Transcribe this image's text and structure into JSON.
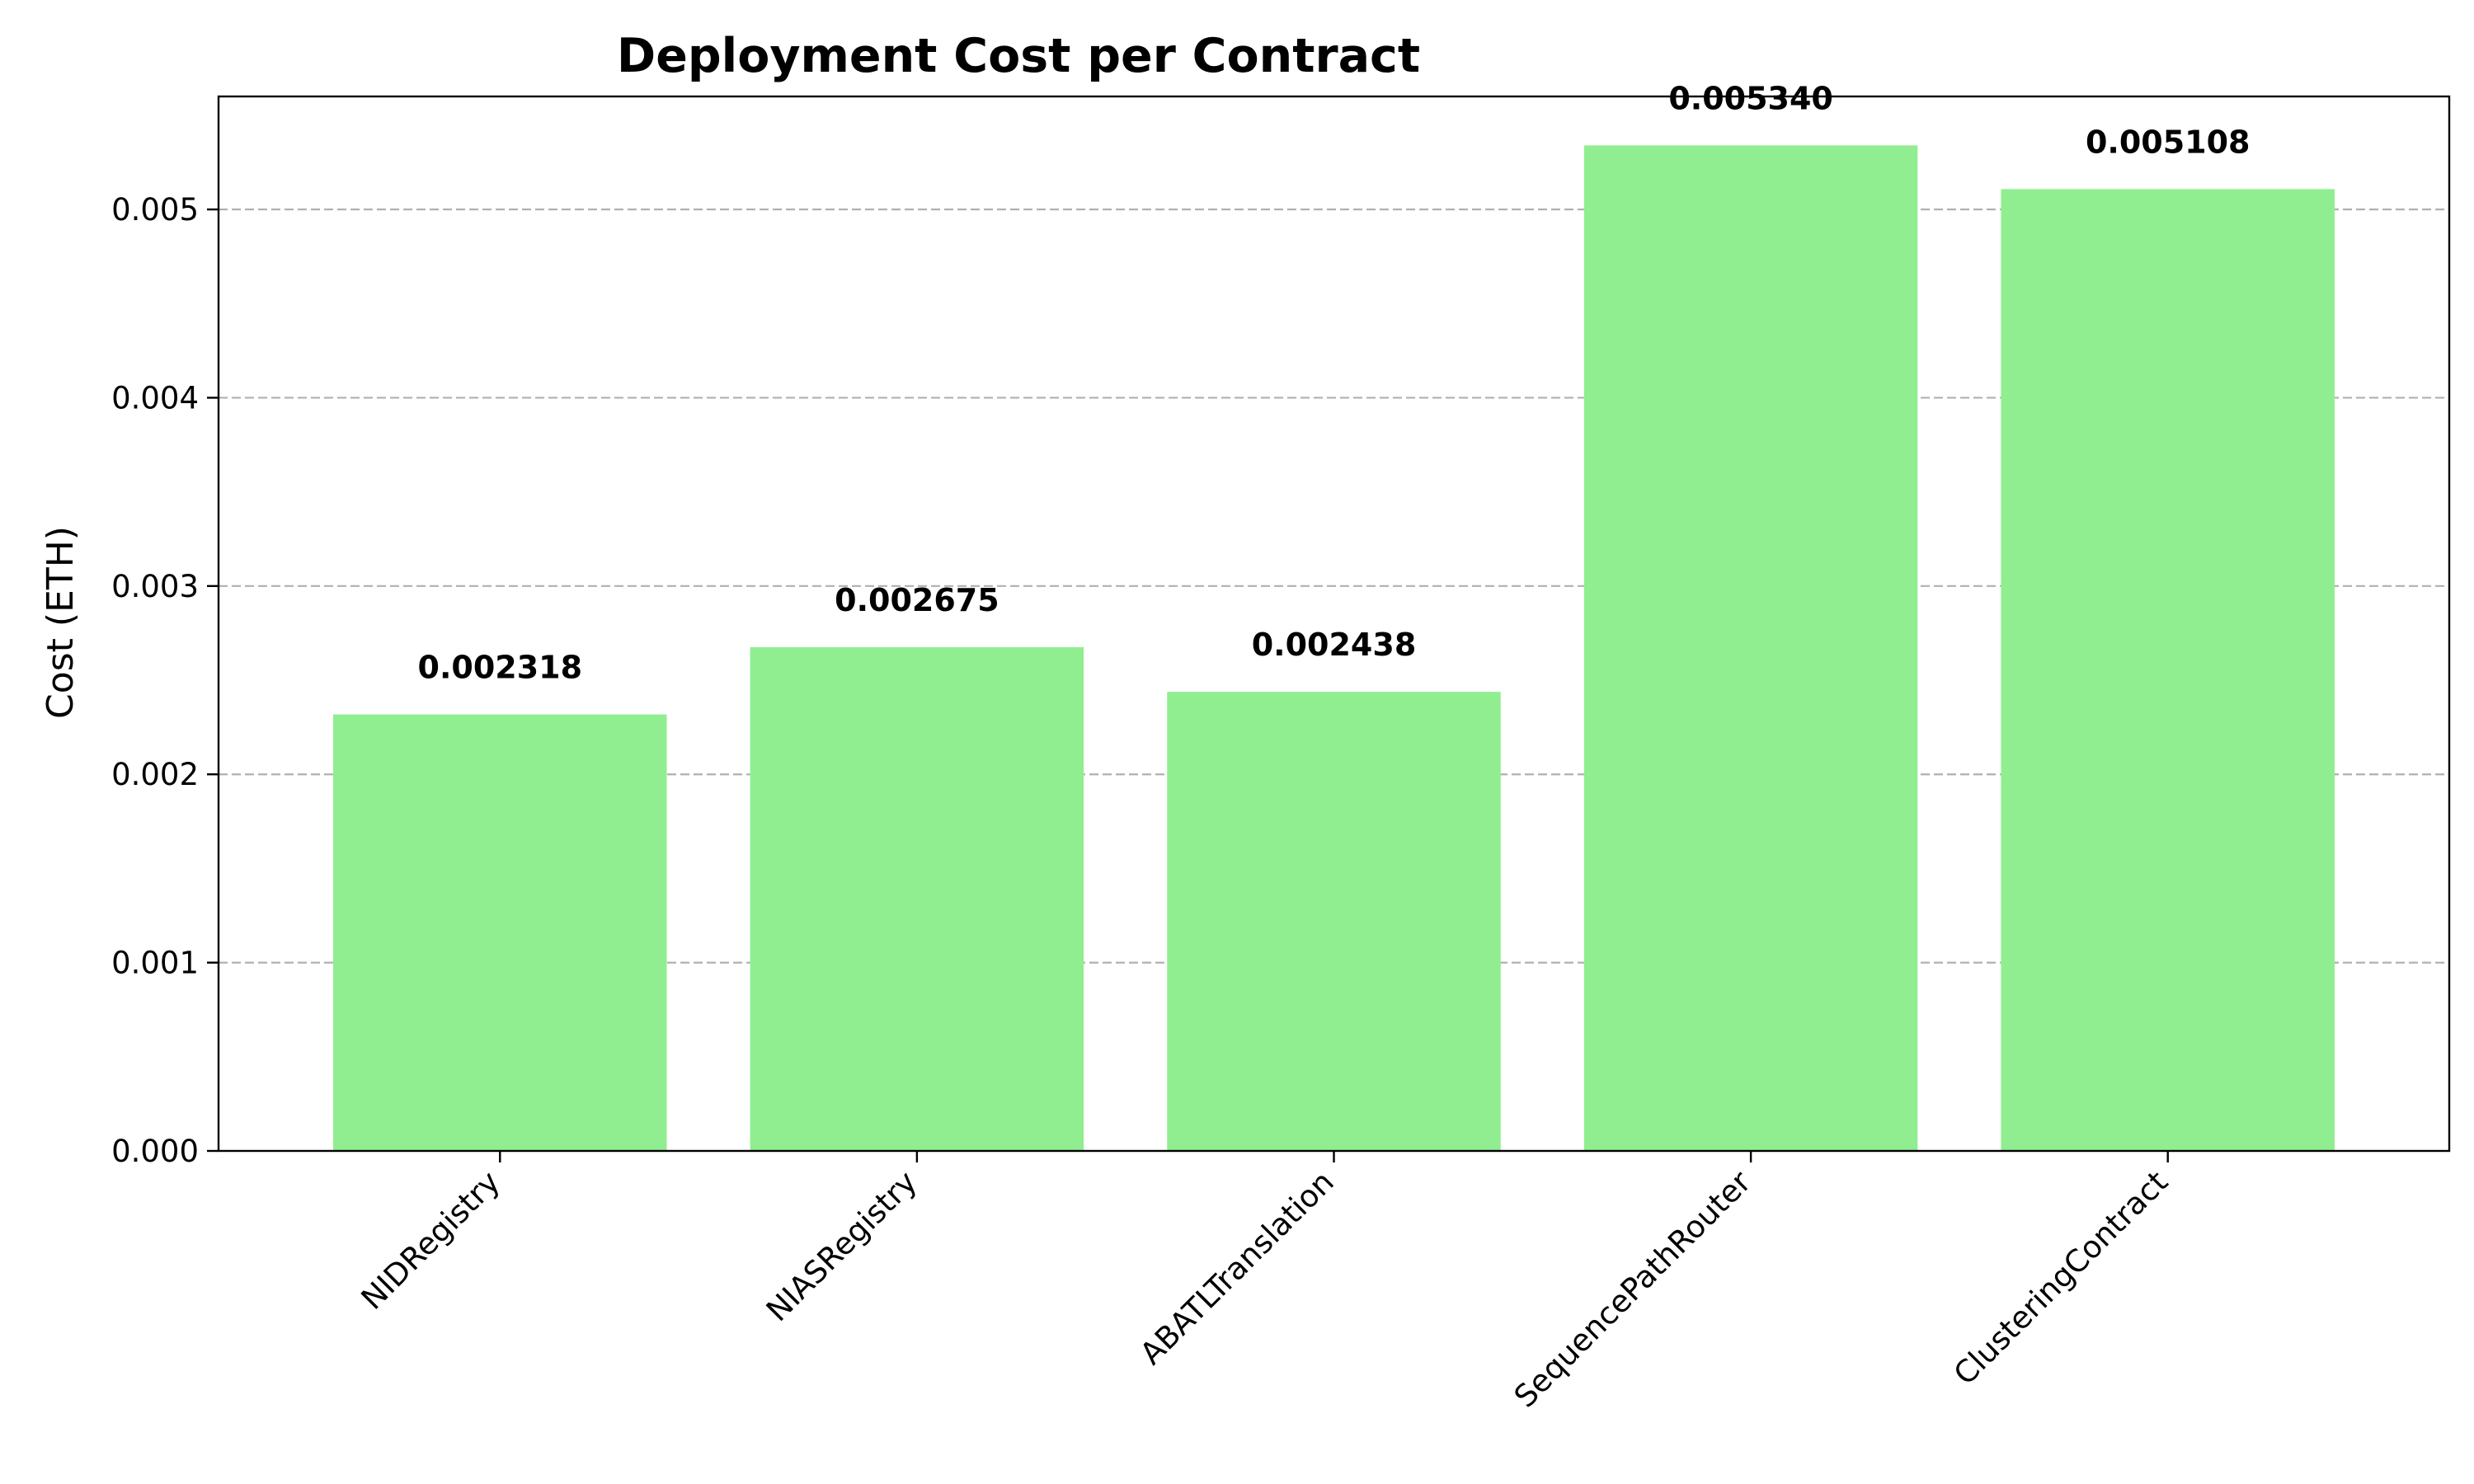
{
  "chart_data": {
    "type": "bar",
    "title": "Deployment Cost per Contract",
    "xlabel": "",
    "ylabel": "Cost (ETH)",
    "categories": [
      "NIDRegistry",
      "NIASRegistry",
      "ABATLTranslation",
      "SequencePathRouter",
      "ClusteringContract"
    ],
    "values": [
      0.002318,
      0.002675,
      0.002438,
      0.00534,
      0.005108
    ],
    "value_labels": [
      "0.002318",
      "0.002675",
      "0.002438",
      "0.005340",
      "0.005108"
    ],
    "ylim": [
      0,
      0.0056
    ],
    "yticks": [
      0,
      0.001,
      0.002,
      0.003,
      0.004,
      0.005
    ],
    "ytick_labels": [
      "0.000",
      "0.001",
      "0.002",
      "0.003",
      "0.004",
      "0.005"
    ],
    "grid": "y-dashed",
    "legend": "none",
    "bar_color": "#90ee90",
    "grid_color": "#b0b0b0"
  }
}
